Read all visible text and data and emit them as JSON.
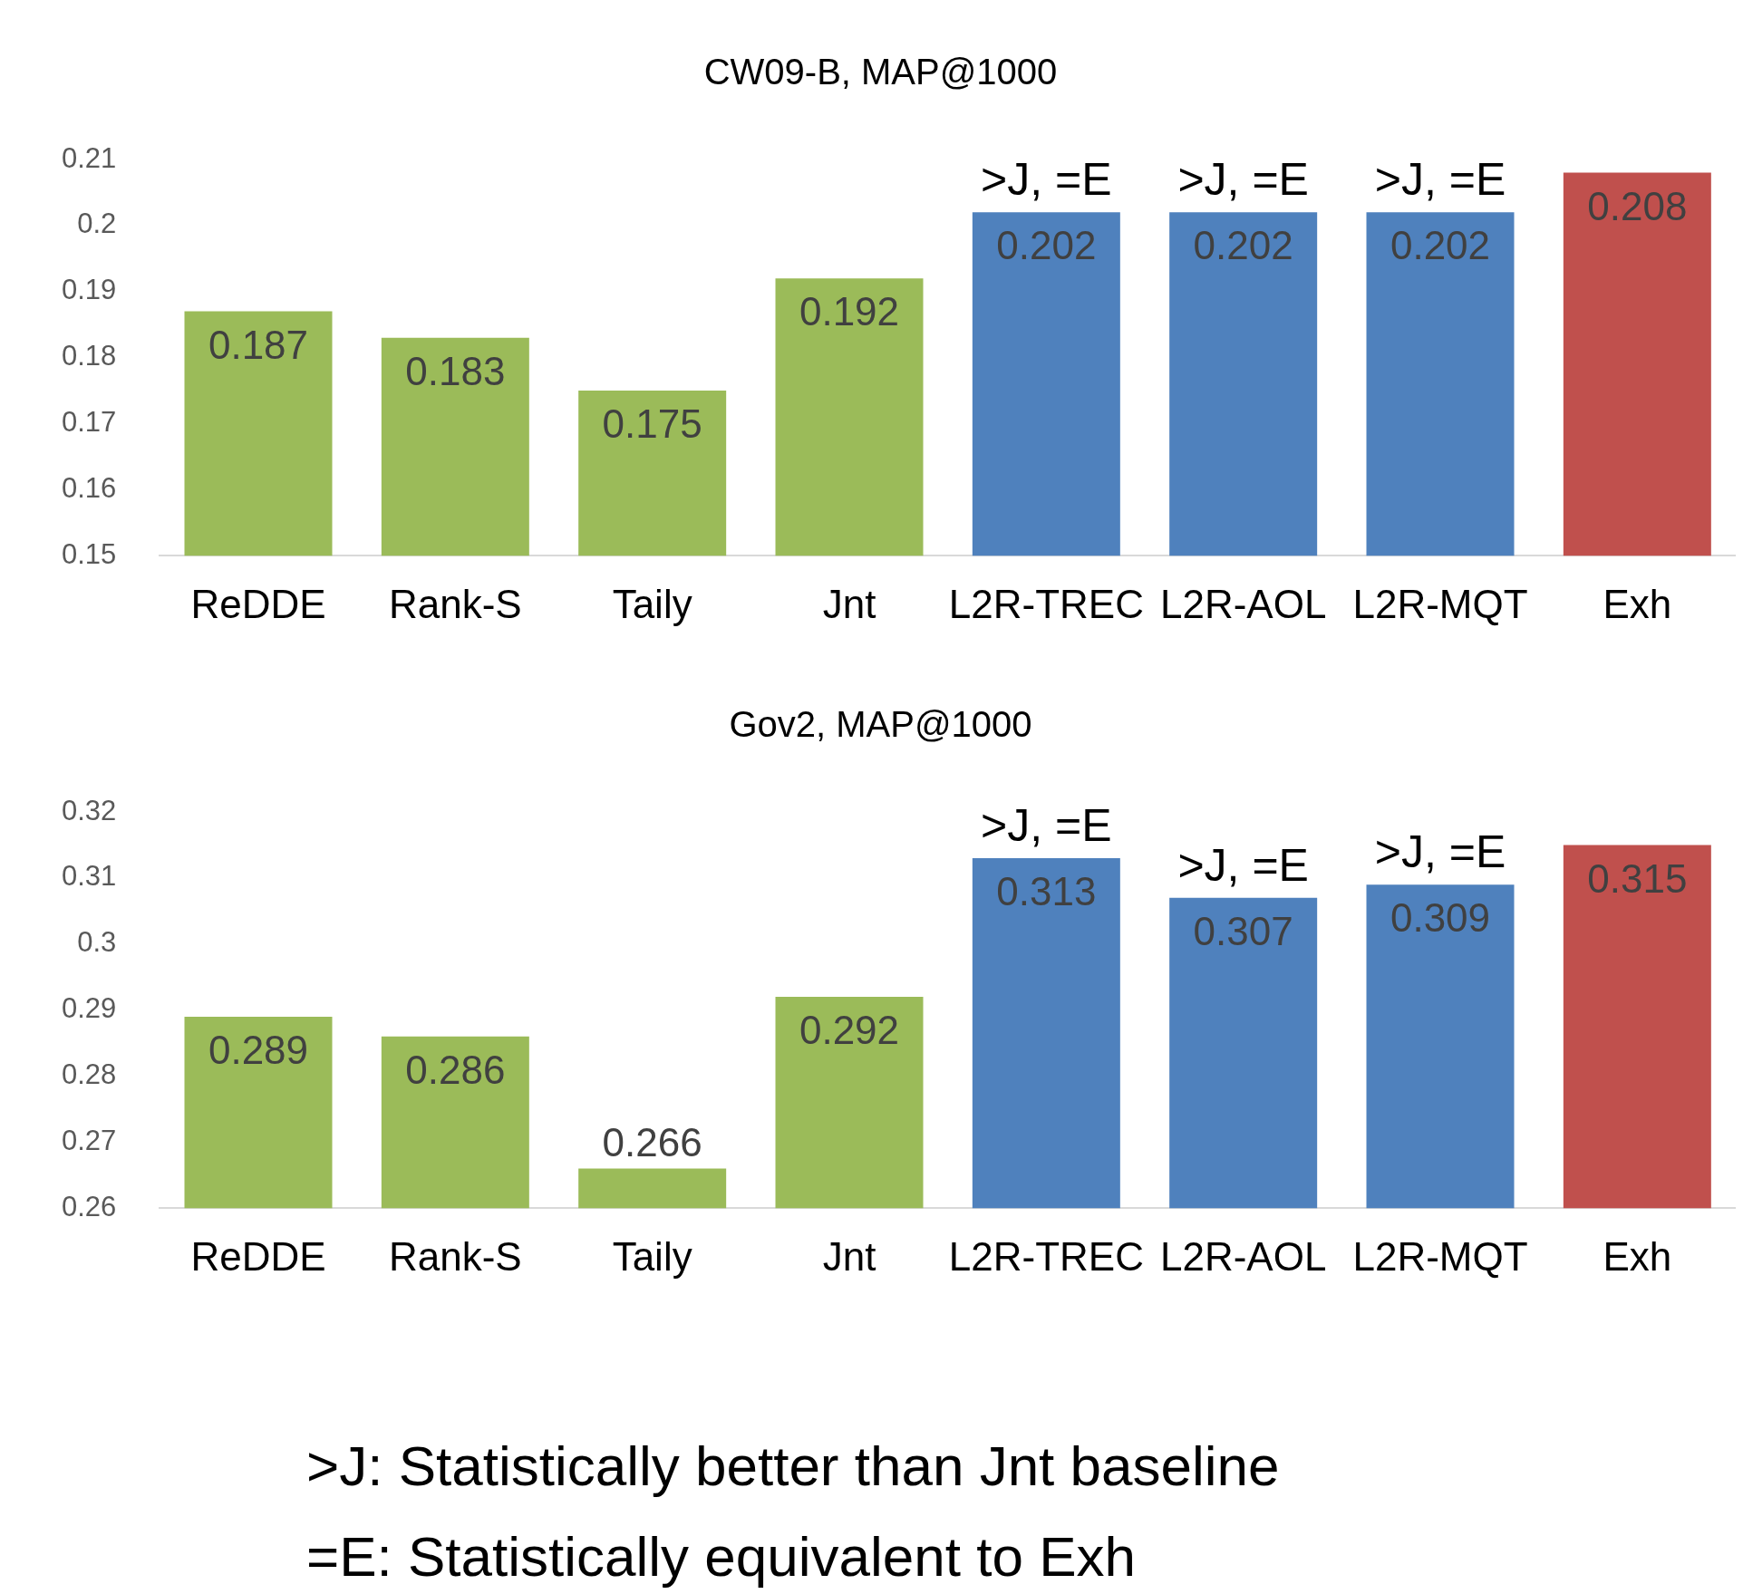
{
  "chart_data": [
    {
      "type": "bar",
      "title": "CW09-B, MAP@1000",
      "categories": [
        "ReDDE",
        "Rank-S",
        "Taily",
        "Jnt",
        "L2R-TREC",
        "L2R-AOL",
        "L2R-MQT",
        "Exh"
      ],
      "values": [
        0.187,
        0.183,
        0.175,
        0.192,
        0.202,
        0.202,
        0.202,
        0.208
      ],
      "colors": [
        "#9bbb59",
        "#9bbb59",
        "#9bbb59",
        "#9bbb59",
        "#4f81bd",
        "#4f81bd",
        "#4f81bd",
        "#c0504d"
      ],
      "ylim": [
        0.15,
        0.21
      ],
      "yticks": [
        0.15,
        0.16,
        0.17,
        0.18,
        0.19,
        0.2,
        0.21
      ],
      "grid": false,
      "legend": false,
      "data_labels": true,
      "annotations": [
        {
          "text": ">J, =E",
          "x": "L2R-TREC",
          "y": 0.202
        },
        {
          "text": ">J, =E",
          "x": "L2R-AOL",
          "y": 0.202
        },
        {
          "text": ">J, =E",
          "x": "L2R-MQT",
          "y": 0.202
        }
      ]
    },
    {
      "type": "bar",
      "title": "Gov2, MAP@1000",
      "categories": [
        "ReDDE",
        "Rank-S",
        "Taily",
        "Jnt",
        "L2R-TREC",
        "L2R-AOL",
        "L2R-MQT",
        "Exh"
      ],
      "values": [
        0.289,
        0.286,
        0.266,
        0.292,
        0.313,
        0.307,
        0.309,
        0.315
      ],
      "colors": [
        "#9bbb59",
        "#9bbb59",
        "#9bbb59",
        "#9bbb59",
        "#4f81bd",
        "#4f81bd",
        "#4f81bd",
        "#c0504d"
      ],
      "ylim": [
        0.26,
        0.32
      ],
      "yticks": [
        0.26,
        0.27,
        0.28,
        0.29,
        0.3,
        0.31,
        0.32
      ],
      "grid": false,
      "legend": false,
      "data_labels": true,
      "annotations": [
        {
          "text": ">J, =E",
          "x": "L2R-TREC",
          "y": 0.313
        },
        {
          "text": ">J, =E",
          "x": "L2R-AOL",
          "y": 0.307
        },
        {
          "text": ">J, =E",
          "x": "L2R-MQT",
          "y": 0.309
        },
        ">J: Statistically better than Jnt baseline",
        "=E: Statistically equivalent to Exh"
      ]
    }
  ]
}
